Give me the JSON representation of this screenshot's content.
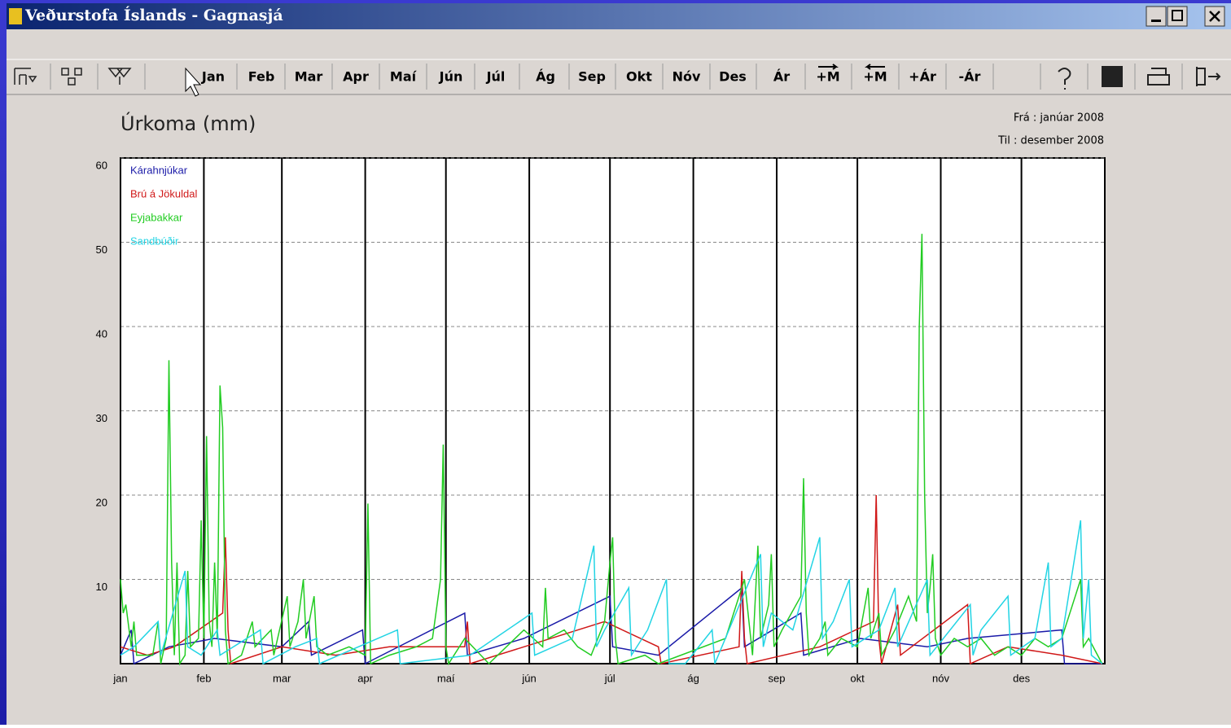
{
  "window": {
    "title": "Veðurstofa Íslands - Gagnasjá"
  },
  "toolbar": {
    "buttons": [
      "Jan",
      "Feb",
      "Mar",
      "Apr",
      "Maí",
      "Jún",
      "Júl",
      "Ág",
      "Sep",
      "Okt",
      "Nóv",
      "Des",
      "Ár",
      "+M",
      "+M",
      "+Ár",
      "-Ár"
    ]
  },
  "period": {
    "from": "Frá : janúar  2008",
    "to": "Til : desember  2008"
  },
  "chart_data": {
    "type": "line",
    "title": "Úrkoma (mm)",
    "xlim": [
      0,
      366
    ],
    "xticks": [
      {
        "value": 0,
        "label": "jan"
      },
      {
        "value": 31,
        "label": "feb"
      },
      {
        "value": 60,
        "label": "mar"
      },
      {
        "value": 91,
        "label": "apr"
      },
      {
        "value": 121,
        "label": "maí"
      },
      {
        "value": 152,
        "label": "jún"
      },
      {
        "value": 182,
        "label": "júl"
      },
      {
        "value": 213,
        "label": "ág"
      },
      {
        "value": 244,
        "label": "sep"
      },
      {
        "value": 274,
        "label": "okt"
      },
      {
        "value": 305,
        "label": "nóv"
      },
      {
        "value": 335,
        "label": "des"
      }
    ],
    "ylim": [
      0,
      60
    ],
    "yticks": [
      10,
      20,
      30,
      40,
      50,
      60
    ],
    "grid": true,
    "legend": "upper left",
    "series": [
      {
        "name": "Kárahnjúkar",
        "color": "#1a1aa8",
        "x": [
          0,
          4,
          5,
          18,
          35,
          60,
          70,
          71,
          90,
          91,
          128,
          129,
          150,
          182,
          183,
          200,
          231,
          232,
          253,
          254,
          275,
          300,
          315,
          350,
          351,
          365
        ],
        "values": [
          1,
          4,
          0,
          2,
          3,
          2,
          5,
          1,
          4,
          0,
          6,
          1,
          3,
          8,
          2,
          1,
          9,
          2,
          6,
          1,
          3,
          2,
          3,
          4,
          0,
          0
        ]
      },
      {
        "name": "Brú á Jökuldal",
        "color": "#d01818",
        "x": [
          0,
          10,
          20,
          38,
          39,
          40,
          41,
          60,
          80,
          100,
          128,
          129,
          130,
          180,
          200,
          201,
          230,
          231,
          232,
          233,
          260,
          280,
          281,
          282,
          283,
          289,
          290,
          315,
          316,
          330,
          350,
          365
        ],
        "values": [
          2,
          1,
          2,
          6,
          15,
          4,
          0,
          2,
          1,
          2,
          2,
          5,
          0,
          5,
          2,
          0,
          2,
          11,
          3,
          0,
          2,
          5,
          20,
          3,
          0,
          7,
          1,
          7,
          0,
          2,
          1,
          0
        ]
      },
      {
        "name": "Eyjabakkar",
        "color": "#22cc22",
        "x": [
          0,
          1,
          2,
          4,
          5,
          6,
          12,
          14,
          15,
          17,
          18,
          19,
          20,
          21,
          22,
          24,
          25,
          26,
          29,
          30,
          31,
          32,
          33,
          34,
          35,
          36,
          37,
          38,
          39,
          40,
          45,
          49,
          50,
          56,
          57,
          62,
          63,
          66,
          68,
          69,
          72,
          73,
          77,
          85,
          91,
          92,
          93,
          100,
          110,
          116,
          119,
          120,
          121,
          122,
          128,
          137,
          150,
          157,
          158,
          159,
          165,
          170,
          175,
          180,
          182,
          183,
          184,
          185,
          195,
          200,
          225,
          232,
          235,
          237,
          238,
          241,
          242,
          243,
          246,
          253,
          254,
          255,
          256,
          260,
          262,
          263,
          268,
          274,
          278,
          279,
          282,
          283,
          288,
          293,
          296,
          297,
          298,
          299,
          300,
          301,
          302,
          303,
          305,
          310,
          315,
          320,
          325,
          330,
          335,
          340,
          345,
          350,
          355,
          357,
          358,
          360,
          365
        ],
        "values": [
          10,
          6,
          7,
          2,
          5,
          1,
          1,
          5,
          0,
          3,
          36,
          12,
          1,
          12,
          0,
          1,
          11,
          2,
          3,
          17,
          3,
          27,
          5,
          2,
          12,
          3,
          33,
          28,
          4,
          0,
          1,
          5,
          2,
          4,
          1,
          8,
          2,
          5,
          10,
          3,
          8,
          2,
          1,
          2,
          1,
          19,
          0,
          1,
          2,
          3,
          10,
          26,
          2,
          0,
          3,
          0,
          4,
          2,
          9,
          3,
          4,
          2,
          1,
          5,
          12,
          15,
          3,
          0,
          1,
          0,
          3,
          10,
          1,
          14,
          3,
          7,
          13,
          2,
          4,
          8,
          22,
          6,
          1,
          3,
          5,
          1,
          3,
          2,
          9,
          3,
          6,
          1,
          4,
          8,
          5,
          40,
          51,
          20,
          6,
          9,
          13,
          3,
          1,
          3,
          2,
          3,
          1,
          2,
          1,
          3,
          2,
          3,
          8,
          10,
          2,
          3,
          0
        ]
      },
      {
        "name": "Sandbúðir",
        "color": "#22d4e4",
        "x": [
          0,
          5,
          14,
          15,
          24,
          25,
          30,
          36,
          37,
          52,
          53,
          65,
          73,
          74,
          103,
          104,
          130,
          153,
          154,
          168,
          176,
          177,
          180,
          189,
          190,
          196,
          203,
          204,
          210,
          220,
          221,
          238,
          239,
          242,
          250,
          260,
          261,
          265,
          271,
          272,
          282,
          288,
          289,
          300,
          301,
          316,
          317,
          320,
          330,
          331,
          340,
          345,
          346,
          350,
          357,
          358,
          360,
          361,
          365
        ],
        "values": [
          1,
          2,
          5,
          1,
          11,
          2,
          1,
          4,
          1,
          4,
          0,
          2,
          3,
          0,
          4,
          0,
          1,
          6,
          1,
          3,
          14,
          2,
          4,
          9,
          1,
          4,
          10,
          0,
          0,
          4,
          0,
          13,
          2,
          6,
          4,
          15,
          3,
          5,
          10,
          2,
          4,
          9,
          2,
          10,
          1,
          7,
          1,
          4,
          8,
          1,
          3,
          12,
          2,
          3,
          17,
          3,
          10,
          1,
          0
        ]
      }
    ]
  }
}
